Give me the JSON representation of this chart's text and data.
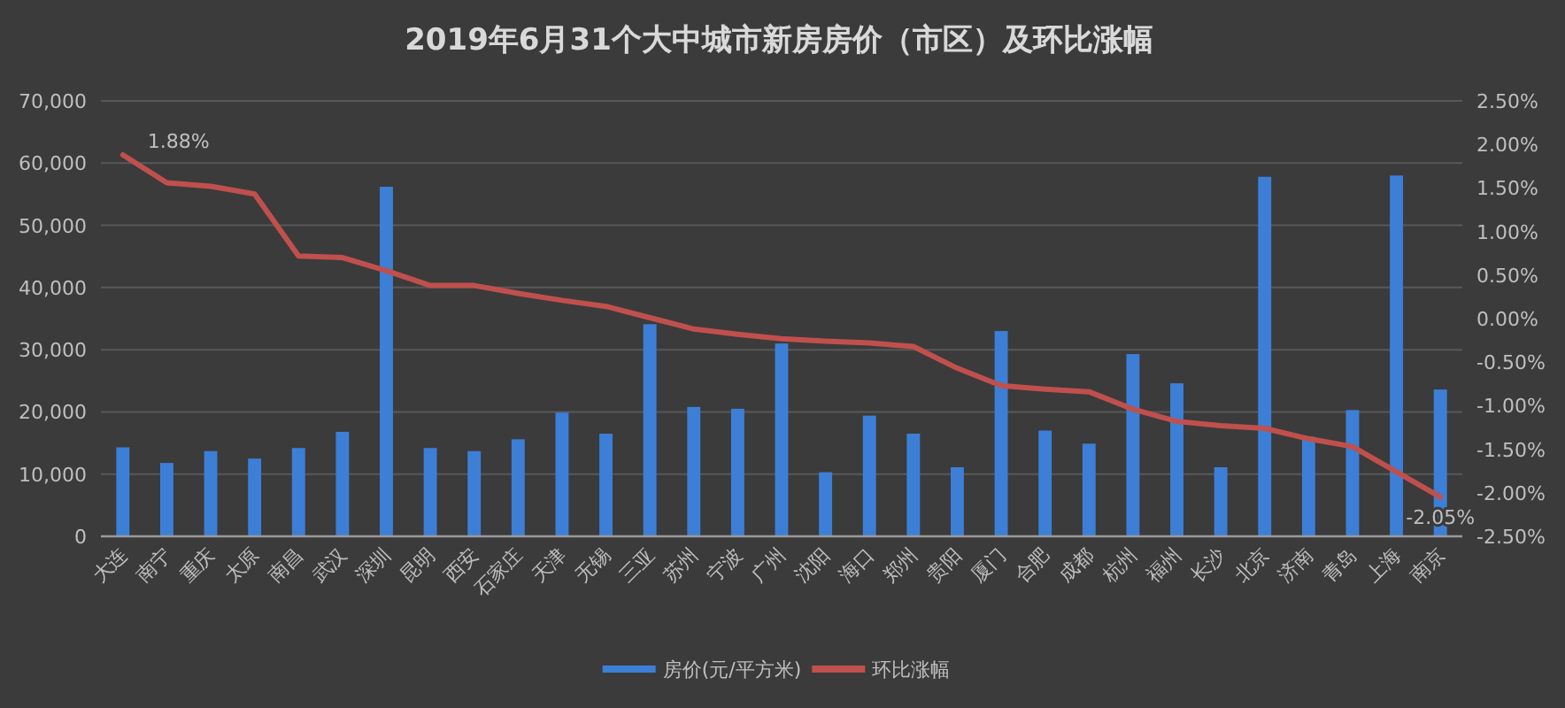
{
  "chart_data": {
    "type": "bar",
    "title": "2019年6月31个大中城市新房房价（市区）及环比涨幅",
    "categories": [
      "大连",
      "南宁",
      "重庆",
      "太原",
      "南昌",
      "武汉",
      "深圳",
      "昆明",
      "西安",
      "石家庄",
      "天津",
      "无锡",
      "三亚",
      "苏州",
      "宁波",
      "广州",
      "沈阳",
      "海口",
      "郑州",
      "贵阳",
      "厦门",
      "合肥",
      "成都",
      "杭州",
      "福州",
      "长沙",
      "北京",
      "济南",
      "青岛",
      "上海",
      "南京"
    ],
    "series": [
      {
        "name": "房价(元/平方米)",
        "color": "#3d7fd6",
        "values": [
          14300,
          11800,
          13700,
          12500,
          14200,
          16800,
          56200,
          14200,
          13700,
          15600,
          19900,
          16500,
          34100,
          20800,
          20500,
          31000,
          10300,
          19400,
          16500,
          11100,
          33000,
          17000,
          14900,
          29300,
          24600,
          11100,
          57800,
          16000,
          20300,
          58000,
          23600
        ]
      },
      {
        "name": "环比涨幅",
        "type": "line",
        "axis": "y2",
        "color": "#c0504d",
        "values": [
          1.88,
          1.56,
          1.52,
          1.43,
          0.72,
          0.7,
          0.55,
          0.38,
          0.38,
          0.29,
          0.21,
          0.14,
          0.01,
          -0.12,
          -0.18,
          -0.23,
          -0.26,
          -0.28,
          -0.32,
          -0.57,
          -0.77,
          -0.81,
          -0.84,
          -1.04,
          -1.18,
          -1.23,
          -1.26,
          -1.38,
          -1.47,
          -1.76,
          -2.05
        ],
        "value_labels": [
          "1.88%",
          null,
          null,
          null,
          null,
          null,
          null,
          null,
          null,
          null,
          null,
          null,
          null,
          null,
          null,
          null,
          null,
          null,
          null,
          null,
          null,
          null,
          null,
          null,
          null,
          null,
          null,
          null,
          null,
          null,
          "-2.05%"
        ]
      }
    ],
    "ylim": [
      0,
      70000
    ],
    "yticks": [
      0,
      {
        "value": 10000,
        "label": "10,000"
      },
      {
        "value": 20000,
        "label": "20,000"
      },
      {
        "value": 30000,
        "label": "30,000"
      },
      {
        "value": 40000,
        "label": "40,000"
      },
      {
        "value": 50000,
        "label": "50,000"
      },
      {
        "value": 60000,
        "label": "60,000"
      },
      {
        "value": 70000,
        "label": "70,000"
      }
    ],
    "y2lim": [
      -2.5,
      2.5
    ],
    "y2ticks": [
      {
        "value": -2.5,
        "label": "-2.50%"
      },
      {
        "value": -2,
        "label": "-2.00%"
      },
      {
        "value": -1.5,
        "label": "-1.50%"
      },
      {
        "value": -1,
        "label": "-1.00%"
      },
      {
        "value": -0.5,
        "label": "-0.50%"
      },
      {
        "value": 0,
        "label": "0.00%"
      },
      {
        "value": 0.5,
        "label": "0.50%"
      },
      {
        "value": 1,
        "label": "1.00%"
      },
      {
        "value": 1.5,
        "label": "1.50%"
      },
      {
        "value": 2,
        "label": "2.00%"
      },
      {
        "value": 2.5,
        "label": "2.50%"
      }
    ],
    "grid": "y",
    "legend": "bottom"
  }
}
